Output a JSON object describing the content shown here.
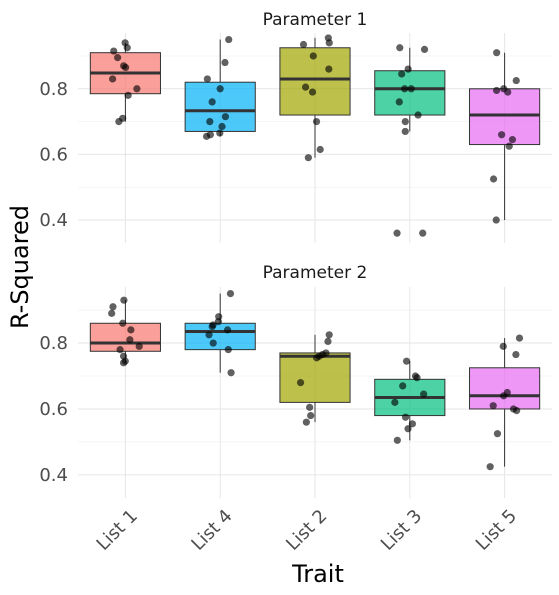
{
  "chart_data": {
    "type": "box",
    "xlabel": "Trait",
    "ylabel": "R-Squared",
    "categories": [
      "List 1",
      "List 4",
      "List 2",
      "List 3",
      "List 5"
    ],
    "colors": {
      "List 1": "#F8766D",
      "List 4": "#00B0F6",
      "List 2": "#A3A500",
      "List 3": "#00BF7D",
      "List 5": "#E76BF3"
    },
    "ylim": [
      0.33,
      0.97
    ],
    "y_ticks": [
      0.4,
      0.6,
      0.8
    ],
    "grid": true,
    "legend": "none",
    "panels": [
      {
        "title": "Parameter 1",
        "boxes": [
          {
            "category": "List 1",
            "q1": 0.785,
            "median": 0.848,
            "q3": 0.91,
            "whisker_low": 0.7,
            "whisker_high": 0.94,
            "points": [
              0.94,
              0.925,
              0.915,
              0.895,
              0.87,
              0.865,
              0.83,
              0.8,
              0.78,
              0.71,
              0.7
            ]
          },
          {
            "category": "List 4",
            "q1": 0.67,
            "median": 0.733,
            "q3": 0.82,
            "whisker_low": 0.655,
            "whisker_high": 0.95,
            "points": [
              0.95,
              0.88,
              0.83,
              0.8,
              0.76,
              0.715,
              0.7,
              0.685,
              0.665,
              0.66,
              0.655
            ]
          },
          {
            "category": "List 2",
            "q1": 0.72,
            "median": 0.83,
            "q3": 0.925,
            "whisker_low": 0.59,
            "whisker_high": 0.955,
            "points": [
              0.955,
              0.94,
              0.935,
              0.9,
              0.86,
              0.805,
              0.79,
              0.7,
              0.615,
              0.59
            ]
          },
          {
            "category": "List 3",
            "q1": 0.72,
            "median": 0.8,
            "q3": 0.855,
            "whisker_low": 0.67,
            "whisker_high": 0.925,
            "points": [
              0.925,
              0.92,
              0.86,
              0.845,
              0.8,
              0.8,
              0.76,
              0.72,
              0.7,
              0.67,
              0.36,
              0.36
            ]
          },
          {
            "category": "List 5",
            "q1": 0.63,
            "median": 0.72,
            "q3": 0.8,
            "whisker_low": 0.4,
            "whisker_high": 0.91,
            "points": [
              0.91,
              0.825,
              0.8,
              0.795,
              0.79,
              0.66,
              0.645,
              0.625,
              0.525,
              0.4
            ]
          }
        ]
      },
      {
        "title": "Parameter 2",
        "boxes": [
          {
            "category": "List 1",
            "q1": 0.775,
            "median": 0.8,
            "q3": 0.86,
            "whisker_low": 0.74,
            "whisker_high": 0.93,
            "points": [
              0.93,
              0.91,
              0.89,
              0.86,
              0.84,
              0.81,
              0.79,
              0.78,
              0.76,
              0.745,
              0.74
            ]
          },
          {
            "category": "List 4",
            "q1": 0.78,
            "median": 0.835,
            "q3": 0.86,
            "whisker_low": 0.71,
            "whisker_high": 0.95,
            "points": [
              0.95,
              0.88,
              0.865,
              0.855,
              0.85,
              0.84,
              0.825,
              0.8,
              0.78,
              0.71
            ]
          },
          {
            "category": "List 2",
            "q1": 0.62,
            "median": 0.76,
            "q3": 0.77,
            "whisker_low": 0.56,
            "whisker_high": 0.825,
            "points": [
              0.825,
              0.805,
              0.77,
              0.765,
              0.76,
              0.755,
              0.68,
              0.605,
              0.58,
              0.56
            ]
          },
          {
            "category": "List 3",
            "q1": 0.58,
            "median": 0.635,
            "q3": 0.69,
            "whisker_low": 0.505,
            "whisker_high": 0.745,
            "points": [
              0.745,
              0.7,
              0.695,
              0.67,
              0.645,
              0.62,
              0.575,
              0.555,
              0.54,
              0.505
            ]
          },
          {
            "category": "List 5",
            "q1": 0.6,
            "median": 0.64,
            "q3": 0.725,
            "whisker_low": 0.425,
            "whisker_high": 0.815,
            "points": [
              0.815,
              0.79,
              0.765,
              0.65,
              0.64,
              0.61,
              0.6,
              0.595,
              0.525,
              0.425
            ]
          }
        ]
      }
    ]
  }
}
